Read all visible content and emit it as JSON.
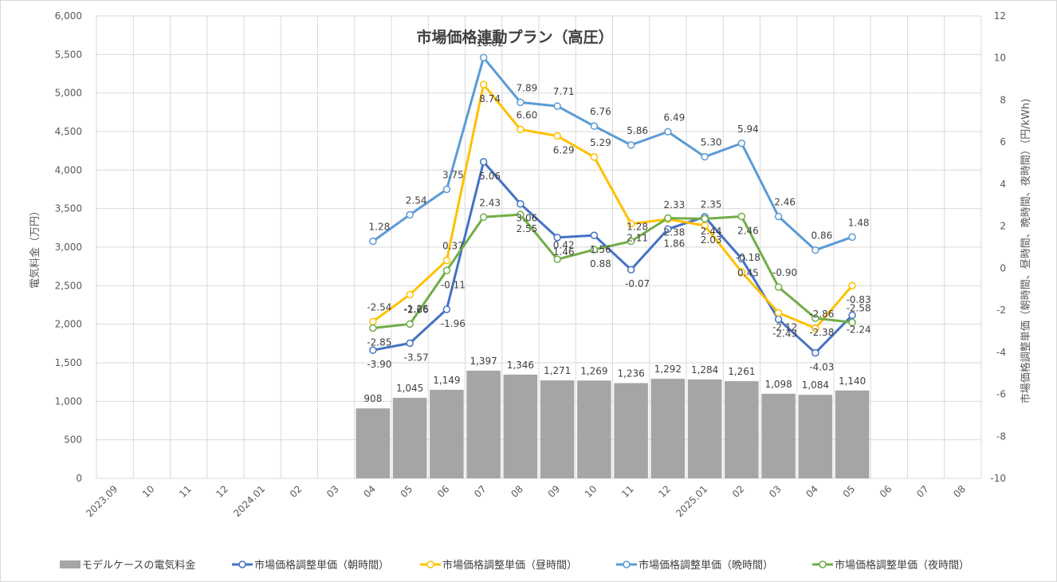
{
  "chart_data": {
    "type": "bar+line",
    "title": "市場価格連動プラン（高圧）",
    "y_left_label": "電気料金（万円）",
    "y_right_label": "市場価格調整単価（朝時間、昼時間、晩時間、夜時間）（円/kWh)",
    "y_left_range": [
      0,
      6000
    ],
    "y_left_ticks": [
      "0",
      "500",
      "1,000",
      "1,500",
      "2,000",
      "2,500",
      "3,000",
      "3,500",
      "4,000",
      "4,500",
      "5,000",
      "5,500",
      "6,000"
    ],
    "y_right_range": [
      -10,
      12
    ],
    "y_right_ticks": [
      "-10",
      "-8",
      "-6",
      "-4",
      "-2",
      "0",
      "2",
      "4",
      "6",
      "8",
      "10",
      "12"
    ],
    "categories": [
      "2023.09",
      "10",
      "11",
      "12",
      "2024.01",
      "02",
      "03",
      "04",
      "05",
      "06",
      "07",
      "08",
      "09",
      "10",
      "11",
      "12",
      "2025.01",
      "02",
      "03",
      "04",
      "05",
      "06",
      "07",
      "08"
    ],
    "bar_series": {
      "name": "モデルケースの電気料金",
      "color": "#a5a5a5",
      "values": [
        null,
        null,
        null,
        null,
        null,
        null,
        null,
        908,
        1045,
        1149,
        1397,
        1346,
        1271,
        1269,
        1236,
        1292,
        1284,
        1261,
        1098,
        1084,
        1140,
        null,
        null,
        null
      ],
      "labels": [
        "",
        "",
        "",
        "",
        "",
        "",
        "",
        "908",
        "1,045",
        "1,149",
        "1,397",
        "1,346",
        "1,271",
        "1,269",
        "1,236",
        "1,292",
        "1,284",
        "1,261",
        "1,098",
        "1,084",
        "1,140",
        "",
        "",
        ""
      ]
    },
    "line_series": [
      {
        "name": "市場価格調整単価（朝時間）",
        "color": "#4472c4",
        "values": [
          null,
          null,
          null,
          null,
          null,
          null,
          null,
          -3.9,
          -3.57,
          -1.96,
          5.06,
          3.06,
          1.46,
          1.56,
          -0.07,
          1.86,
          2.44,
          0.45,
          -2.43,
          -4.03,
          -2.24,
          null,
          null,
          null
        ],
        "labels": [
          "",
          "",
          "",
          "",
          "",
          "",
          "",
          "-3.90",
          "-3.57",
          "-1.96",
          "5.06",
          "3.06",
          "1.46",
          "1.56",
          "-0.07",
          "1.86",
          "2.44",
          "0.45",
          "-2.43",
          "-4.03",
          "-2.24",
          "",
          "",
          ""
        ]
      },
      {
        "name": "市場価格調整単価（昼時間）",
        "color": "#ffc000",
        "values": [
          null,
          null,
          null,
          null,
          null,
          null,
          null,
          -2.54,
          -1.26,
          0.37,
          8.74,
          6.6,
          6.29,
          5.29,
          2.11,
          2.33,
          2.03,
          -0.18,
          -2.12,
          -2.86,
          -0.83,
          null,
          null,
          null
        ],
        "labels": [
          "",
          "",
          "",
          "",
          "",
          "",
          "",
          "-2.54",
          "-1.26",
          "0.37",
          "8.74",
          "6.60",
          "6.29",
          "5.29",
          "2.11",
          "2.33",
          "2.03",
          "-0.18",
          "-2.12",
          "-2.86",
          "-0.83",
          "",
          "",
          ""
        ]
      },
      {
        "name": "市場価格調整単価（晩時間）",
        "color": "#5b9bd5",
        "values": [
          null,
          null,
          null,
          null,
          null,
          null,
          null,
          1.28,
          2.54,
          3.75,
          10.02,
          7.89,
          7.71,
          6.76,
          5.86,
          6.49,
          5.3,
          5.94,
          2.46,
          0.86,
          1.48,
          null,
          null,
          null
        ],
        "labels": [
          "",
          "",
          "",
          "",
          "",
          "",
          "",
          "1.28",
          "2.54",
          "3.75",
          "10.02",
          "7.89",
          "7.71",
          "6.76",
          "5.86",
          "6.49",
          "5.30",
          "5.94",
          "2.46",
          "0.86",
          "1.48",
          "",
          "",
          ""
        ]
      },
      {
        "name": "市場価格調整単価（夜時間）",
        "color": "#70ad47",
        "values": [
          null,
          null,
          null,
          null,
          null,
          null,
          null,
          -2.85,
          -2.66,
          -0.11,
          2.43,
          2.55,
          0.42,
          0.88,
          1.28,
          2.38,
          2.35,
          2.46,
          -0.9,
          -2.38,
          -2.58,
          null,
          null,
          null
        ],
        "labels": [
          "",
          "",
          "",
          "",
          "",
          "",
          "",
          "-2.85",
          "-2.66",
          "-0.11",
          "2.43",
          "2.55",
          "0.42",
          "0.88",
          "1.28",
          "2.38",
          "2.35",
          "2.46",
          "-0.90",
          "-2.38",
          "-2.58",
          "",
          "",
          ""
        ]
      }
    ],
    "grid": true,
    "legend_position": "bottom"
  }
}
